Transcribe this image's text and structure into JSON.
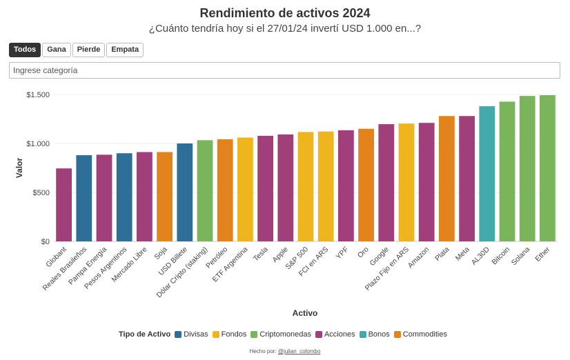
{
  "header": {
    "title": "Rendimiento de activos 2024",
    "subtitle": "¿Cuánto tendría hoy si el 27/01/24 invertí USD 1.000 en...?"
  },
  "filters": {
    "tabs": [
      {
        "label": "Todos",
        "active": true
      },
      {
        "label": "Gana",
        "active": false
      },
      {
        "label": "Pierde",
        "active": false
      },
      {
        "label": "Empata",
        "active": false
      }
    ],
    "search_placeholder": "Ingrese categoría"
  },
  "legend": {
    "title": "Tipo de Activo",
    "items": [
      {
        "label": "Divisas",
        "color": "#2e6f9a"
      },
      {
        "label": "Fondos",
        "color": "#efb51f"
      },
      {
        "label": "Criptomonedas",
        "color": "#7ab55c"
      },
      {
        "label": "Acciones",
        "color": "#a13f7a"
      },
      {
        "label": "Bonos",
        "color": "#43a9a9"
      },
      {
        "label": "Commodities",
        "color": "#e2831c"
      }
    ]
  },
  "footer": {
    "prefix": "Hecho por: ",
    "handle": "@julian_colombo"
  },
  "chart_data": {
    "type": "bar",
    "xlabel": "Activo",
    "ylabel": "Valor",
    "ylim": [
      0,
      1500
    ],
    "yticks": [
      0,
      500,
      1000,
      1500
    ],
    "ytick_labels": [
      "$0",
      "$500",
      "$1.000",
      "$1.500"
    ],
    "grid": true,
    "legend_position": "bottom",
    "categories": [
      "Globant",
      "Reales Brasileños",
      "Pampa Energía",
      "Pesos Argentinos",
      "Mercado Libre",
      "Soja",
      "USD Billete",
      "Dólar Cripto (staking)",
      "Petróleo",
      "ETF Argentina",
      "Tesla",
      "Apple",
      "S&P 500",
      "FCI en ARS",
      "YPF",
      "Oro",
      "Google",
      "Plazo Fijo en ARS",
      "Amazon",
      "Plata",
      "Meta",
      "AL30D",
      "Bitcoin",
      "Solana",
      "Ether"
    ],
    "values": [
      745,
      880,
      885,
      900,
      912,
      912,
      1000,
      1033,
      1043,
      1060,
      1078,
      1092,
      1117,
      1122,
      1135,
      1150,
      1197,
      1203,
      1210,
      1280,
      1280,
      1380,
      1427,
      1485,
      1493
    ],
    "types": [
      "Acciones",
      "Divisas",
      "Acciones",
      "Divisas",
      "Acciones",
      "Commodities",
      "Divisas",
      "Criptomonedas",
      "Commodities",
      "Fondos",
      "Acciones",
      "Acciones",
      "Fondos",
      "Fondos",
      "Acciones",
      "Commodities",
      "Acciones",
      "Fondos",
      "Acciones",
      "Commodities",
      "Acciones",
      "Bonos",
      "Criptomonedas",
      "Criptomonedas",
      "Criptomonedas"
    ]
  }
}
